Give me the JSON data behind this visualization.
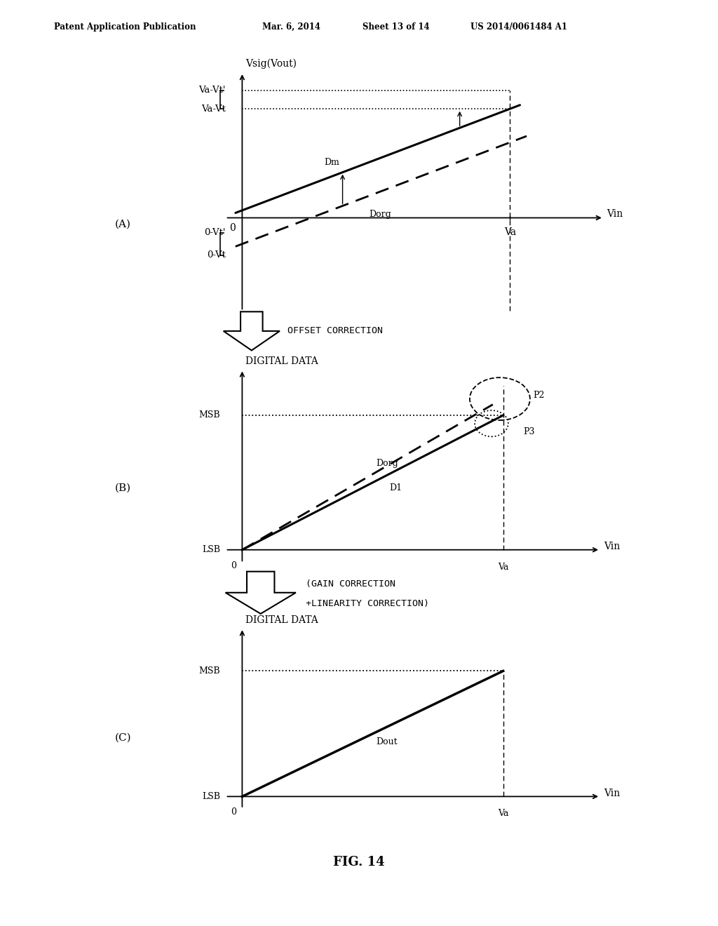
{
  "bg_color": "#ffffff",
  "header_text": "Patent Application Publication",
  "header_date": "Mar. 6, 2014",
  "header_sheet": "Sheet 13 of 14",
  "header_patent": "US 2014/0061484 A1",
  "fig_label": "FIG. 14",
  "panel_A_label": "(A)",
  "panel_B_label": "(B)",
  "panel_C_label": "(C)",
  "arrow_label_1": "OFFSET CORRECTION",
  "arrow_label_2a": "(GAIN CORRECTION",
  "arrow_label_2b": "+LINEARITY CORRECTION)",
  "panelA": {
    "ylabel": "Vsig(Vout)",
    "xlabel": "Vin",
    "origin_label": "0",
    "Va_label": "Va",
    "y_top_label1": "Va-Vt'",
    "y_top_label2": "Va-Vt",
    "y_bot_label1": "0-Vt'",
    "y_bot_label2": "0-Vt",
    "Dm_label": "Dm",
    "Dorg_label": "Dorg"
  },
  "panelB": {
    "ylabel": "DIGITAL DATA",
    "xlabel": "Vin",
    "origin_label": "0",
    "Va_label": "Va",
    "MSB_label": "MSB",
    "LSB_label": "LSB",
    "Dorg_label": "Dorg",
    "D1_label": "D1",
    "P2_label": "P2",
    "P3_label": "P3"
  },
  "panelC": {
    "ylabel": "DIGITAL DATA",
    "xlabel": "Vin",
    "origin_label": "0",
    "Va_label": "Va",
    "MSB_label": "MSB",
    "LSB_label": "LSB",
    "Dout_label": "Dout"
  }
}
